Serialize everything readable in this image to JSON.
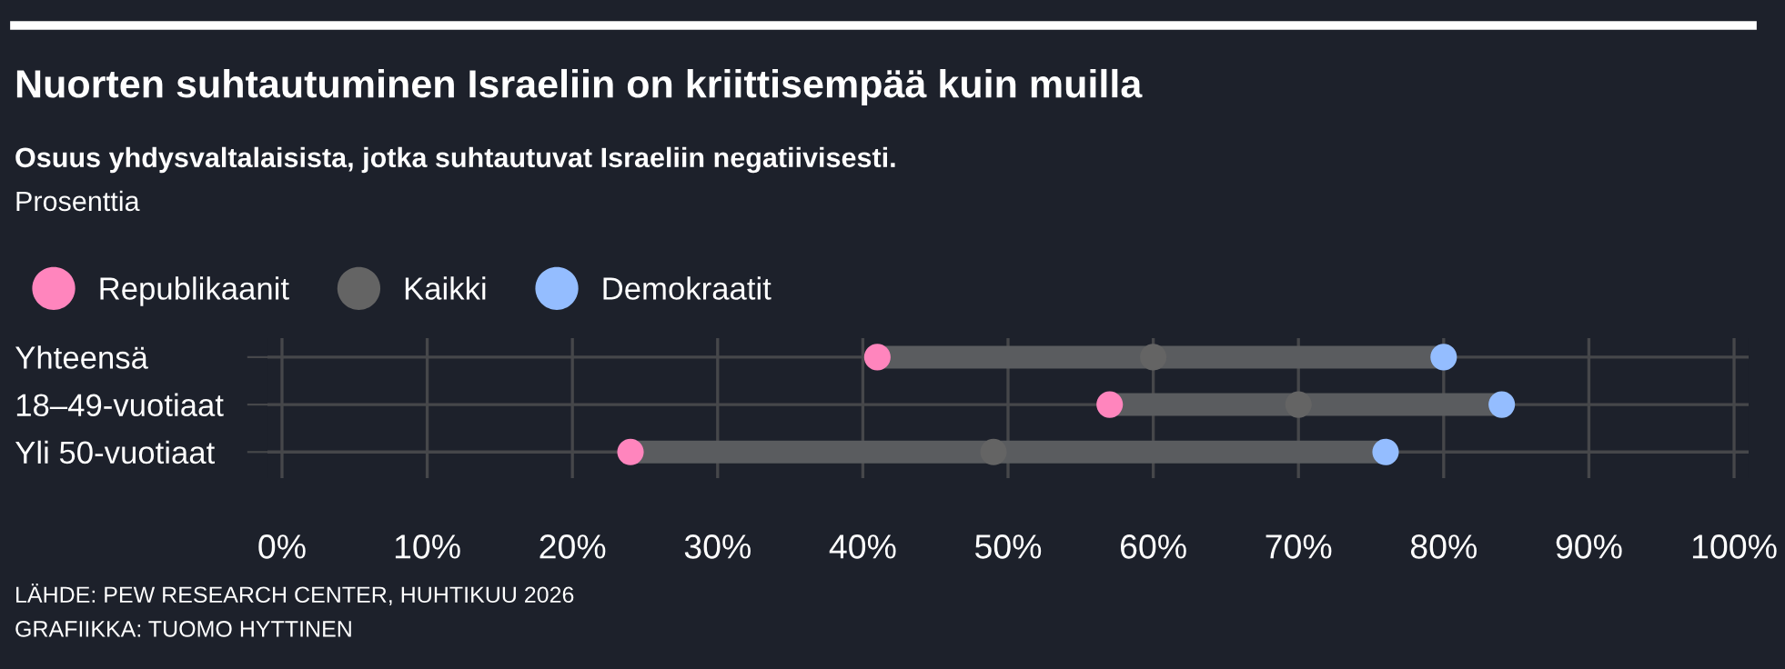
{
  "chart_data": {
    "type": "scatter",
    "orientation": "horizontal",
    "title": "Nuorten suhtautuminen Israeliin on kriittisempää kuin muilla",
    "subtitle": "Osuus yhdysvaltalaisista, jotka suhtautuvat Israeliin negatiivisesti.",
    "xlabel": "Prosenttia",
    "categories": [
      "Yhteensä",
      "18–49-vuotiaat",
      "Yli 50-vuotiaat"
    ],
    "series": [
      {
        "name": "Republikaanit",
        "color": "#ff85bd",
        "values": [
          41,
          57,
          24
        ]
      },
      {
        "name": "Kaikki",
        "color": "#646464",
        "values": [
          60,
          70,
          49
        ]
      },
      {
        "name": "Demokraatit",
        "color": "#94bdff",
        "values": [
          80,
          84,
          76
        ]
      }
    ],
    "xlim": [
      -1,
      101
    ],
    "xticks": [
      {
        "value": 0,
        "label": "0%"
      },
      {
        "value": 10,
        "label": "10%"
      },
      {
        "value": 20,
        "label": "20%"
      },
      {
        "value": 30,
        "label": "30%"
      },
      {
        "value": 40,
        "label": "40%"
      },
      {
        "value": 50,
        "label": "50%"
      },
      {
        "value": 60,
        "label": "60%"
      },
      {
        "value": 70,
        "label": "70%"
      },
      {
        "value": 80,
        "label": "80%"
      },
      {
        "value": 90,
        "label": "90%"
      },
      {
        "value": 100,
        "label": "100%"
      }
    ],
    "grid": true,
    "legend": "top left",
    "marker": "circle",
    "annotations": [
      "LÄHDE: PEW RESEARCH CENTER, HUHTIKUU 2026",
      "GRAFIIKKA: TUOMO HYTTINEN"
    ]
  }
}
